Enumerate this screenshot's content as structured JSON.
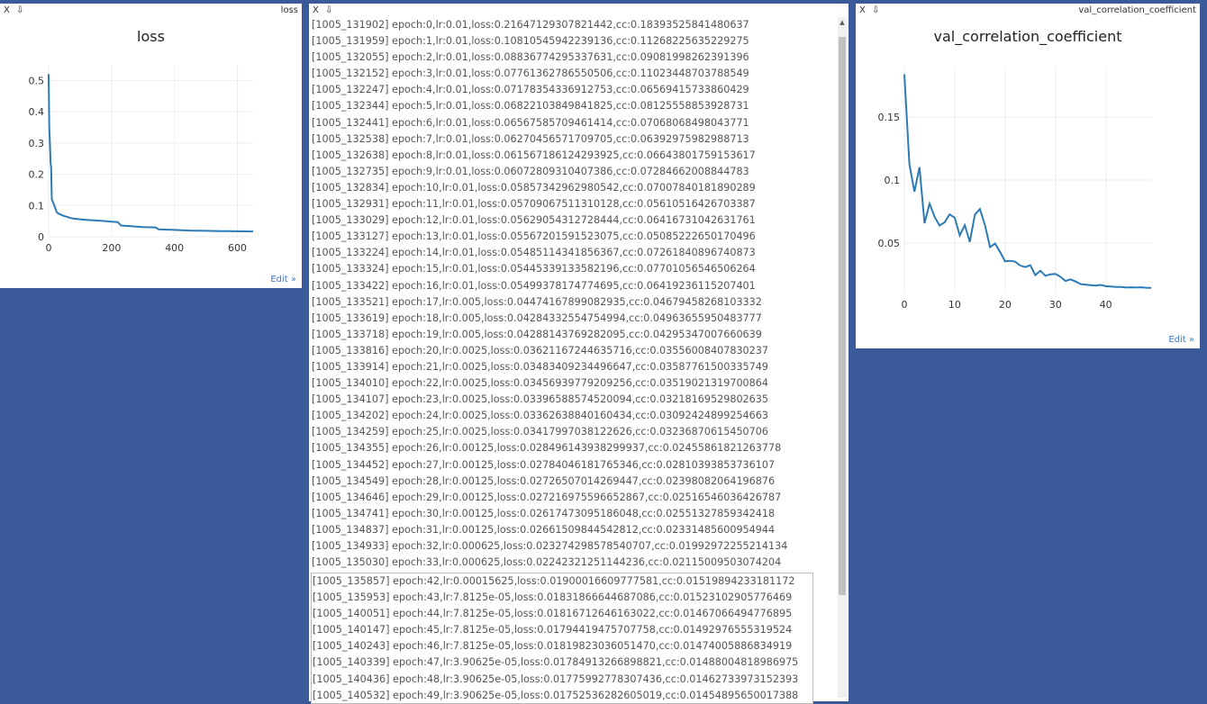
{
  "window_controls": {
    "close": "X",
    "pin": "⇩"
  },
  "loss_pane": {
    "name": "loss",
    "title": "loss",
    "edit_label": "Edit »",
    "y_ticks": [
      "0",
      "0.1",
      "0.2",
      "0.3",
      "0.4",
      "0.5"
    ],
    "x_ticks": [
      "0",
      "200",
      "400",
      "600"
    ]
  },
  "cc_pane": {
    "name": "val_correlation_coefficient",
    "title": "val_correlation_coefficient",
    "edit_label": "Edit »",
    "y_ticks": [
      "0.05",
      "0.1",
      "0.15"
    ],
    "x_ticks": [
      "0",
      "10",
      "20",
      "30",
      "40"
    ]
  },
  "log_pane": {
    "lines": [
      "[1005_131902] epoch:0,lr:0.01,loss:0.21647129307821442,cc:0.18393525841480637",
      "[1005_131959] epoch:1,lr:0.01,loss:0.10810545942239136,cc:0.11268225635229275",
      "[1005_132055] epoch:2,lr:0.01,loss:0.08836774295337631,cc:0.09081998262391396",
      "[1005_132152] epoch:3,lr:0.01,loss:0.07761362786550506,cc:0.11023448703788549",
      "[1005_132247] epoch:4,lr:0.01,loss:0.07178354336912753,cc:0.06569415733860429",
      "[1005_132344] epoch:5,lr:0.01,loss:0.06822103849841825,cc:0.08125558853928731",
      "[1005_132441] epoch:6,lr:0.01,loss:0.06567585709461414,cc:0.07068068498043771",
      "[1005_132538] epoch:7,lr:0.01,loss:0.06270456571709705,cc:0.06392975982988713",
      "[1005_132638] epoch:8,lr:0.01,loss:0.061567186124293925,cc:0.06643801759153617",
      "[1005_132735] epoch:9,lr:0.01,loss:0.06072809310407386,cc:0.07284662008844783",
      "[1005_132834] epoch:10,lr:0.01,loss:0.05857342962980542,cc:0.07007840181890289",
      "[1005_132931] epoch:11,lr:0.01,loss:0.05709067511310128,cc:0.05610516426703387",
      "[1005_133029] epoch:12,lr:0.01,loss:0.05629054312728444,cc:0.06416731042631761",
      "[1005_133127] epoch:13,lr:0.01,loss:0.05567201591523075,cc:0.05085222650170496",
      "[1005_133224] epoch:14,lr:0.01,loss:0.05485114341856367,cc:0.07261840896740873",
      "[1005_133324] epoch:15,lr:0.01,loss:0.05445339133582196,cc:0.07701056546506264",
      "[1005_133422] epoch:16,lr:0.01,loss:0.05499378174774695,cc:0.06419236115207401",
      "[1005_133521] epoch:17,lr:0.005,loss:0.04474167899082935,cc:0.04679458268103332",
      "[1005_133619] epoch:18,lr:0.005,loss:0.04284332554754994,cc:0.04963655950483777",
      "[1005_133718] epoch:19,lr:0.005,loss:0.04288143769282095,cc:0.04295347007660639",
      "[1005_133816] epoch:20,lr:0.0025,loss:0.03621167244635716,cc:0.03556008407830237",
      "[1005_133914] epoch:21,lr:0.0025,loss:0.03483409234496647,cc:0.03587761500335749",
      "[1005_134010] epoch:22,lr:0.0025,loss:0.03456939779209256,cc:0.03519021319700864",
      "[1005_134107] epoch:23,lr:0.0025,loss:0.03396588574520094,cc:0.03218169529802635",
      "[1005_134202] epoch:24,lr:0.0025,loss:0.03362638840160434,cc:0.03092424899254663",
      "[1005_134259] epoch:25,lr:0.0025,loss:0.03417997038122626,cc:0.03236870615450706",
      "[1005_134355] epoch:26,lr:0.00125,loss:0.028496143938299937,cc:0.02455861821263778",
      "[1005_134452] epoch:27,lr:0.00125,loss:0.02784046181765346,cc:0.02810393853736107",
      "[1005_134549] epoch:28,lr:0.00125,loss:0.02726507014269447,cc:0.02398082064196876",
      "[1005_134646] epoch:29,lr:0.00125,loss:0.027216975596652867,cc:0.02516546036426787",
      "[1005_134741] epoch:30,lr:0.00125,loss:0.02617473095186048,cc:0.02551327859342418",
      "[1005_134837] epoch:31,lr:0.00125,loss:0.02661509844542812,cc:0.02331485600954944",
      "[1005_134933] epoch:32,lr:0.000625,loss:0.023274298578540707,cc:0.01992972255214134",
      "[1005_135030] epoch:33,lr:0.000625,loss:0.02242321251144236,cc:0.02115009503074204"
    ],
    "overlay_lines": [
      "[1005_135857] epoch:42,lr:0.00015625,loss:0.01900016609777581,cc:0.01519894233181172",
      "[1005_135953] epoch:43,lr:7.8125e-05,loss:0.01831866644687086,cc:0.01523102905776469",
      "[1005_140051] epoch:44,lr:7.8125e-05,loss:0.01816712646163022,cc:0.01467066494776895",
      "[1005_140147] epoch:45,lr:7.8125e-05,loss:0.01794419475707758,cc:0.01492976555319524",
      "[1005_140243] epoch:46,lr:7.8125e-05,loss:0.01819823036051470,cc:0.01474005886834919",
      "[1005_140339] epoch:47,lr:3.90625e-05,loss:0.01784913266898821,cc:0.01488004818986975",
      "[1005_140436] epoch:48,lr:3.90625e-05,loss:0.01775992778307436,cc:0.01462733973152393",
      "[1005_140532] epoch:49,lr:3.90625e-05,loss:0.01752536282605019,cc:0.01454895650017388"
    ]
  },
  "colors": {
    "line": "#2c7bb6",
    "background": "#3b5a9a",
    "grid": "#eeeeee"
  },
  "chart_data": [
    {
      "type": "line",
      "title": "loss",
      "xlabel": "",
      "ylabel": "",
      "xlim": [
        0,
        650
      ],
      "ylim": [
        0,
        0.55
      ],
      "grid": true,
      "series": [
        {
          "x": [
            0,
            2,
            4,
            6,
            8,
            10,
            12,
            14,
            16,
            18,
            20,
            25,
            30,
            40,
            50,
            60,
            70,
            80,
            100,
            120,
            150,
            180,
            200,
            220,
            230,
            260,
            300,
            340,
            350,
            400,
            450,
            500,
            550,
            600,
            650
          ],
          "values": [
            0.52,
            0.35,
            0.3,
            0.24,
            0.22,
            0.12,
            0.115,
            0.11,
            0.105,
            0.1,
            0.095,
            0.08,
            0.075,
            0.07,
            0.066,
            0.063,
            0.06,
            0.058,
            0.056,
            0.054,
            0.052,
            0.05,
            0.048,
            0.047,
            0.036,
            0.034,
            0.031,
            0.03,
            0.024,
            0.022,
            0.02,
            0.019,
            0.018,
            0.0175,
            0.017
          ]
        }
      ]
    },
    {
      "type": "line",
      "title": "val_correlation_coefficient",
      "xlabel": "",
      "ylabel": "",
      "xlim": [
        0,
        49
      ],
      "ylim": [
        0.01,
        0.19
      ],
      "grid": true,
      "series": [
        {
          "x": [
            0,
            1,
            2,
            3,
            4,
            5,
            6,
            7,
            8,
            9,
            10,
            11,
            12,
            13,
            14,
            15,
            16,
            17,
            18,
            19,
            20,
            21,
            22,
            23,
            24,
            25,
            26,
            27,
            28,
            29,
            30,
            31,
            32,
            33,
            34,
            35,
            36,
            37,
            38,
            39,
            40,
            41,
            42,
            43,
            44,
            45,
            46,
            47,
            48,
            49
          ],
          "values": [
            0.1839,
            0.1127,
            0.0908,
            0.1102,
            0.0657,
            0.0813,
            0.0707,
            0.0639,
            0.0664,
            0.0728,
            0.0701,
            0.0561,
            0.0642,
            0.0509,
            0.0726,
            0.077,
            0.0642,
            0.0468,
            0.0496,
            0.043,
            0.0356,
            0.0359,
            0.0352,
            0.0322,
            0.0309,
            0.0324,
            0.0246,
            0.0281,
            0.024,
            0.0252,
            0.0255,
            0.0233,
            0.0199,
            0.0212,
            0.0195,
            0.0175,
            0.017,
            0.0166,
            0.0162,
            0.0168,
            0.0158,
            0.0156,
            0.0152,
            0.0152,
            0.0147,
            0.0149,
            0.0147,
            0.0149,
            0.0146,
            0.0145
          ]
        }
      ]
    }
  ]
}
